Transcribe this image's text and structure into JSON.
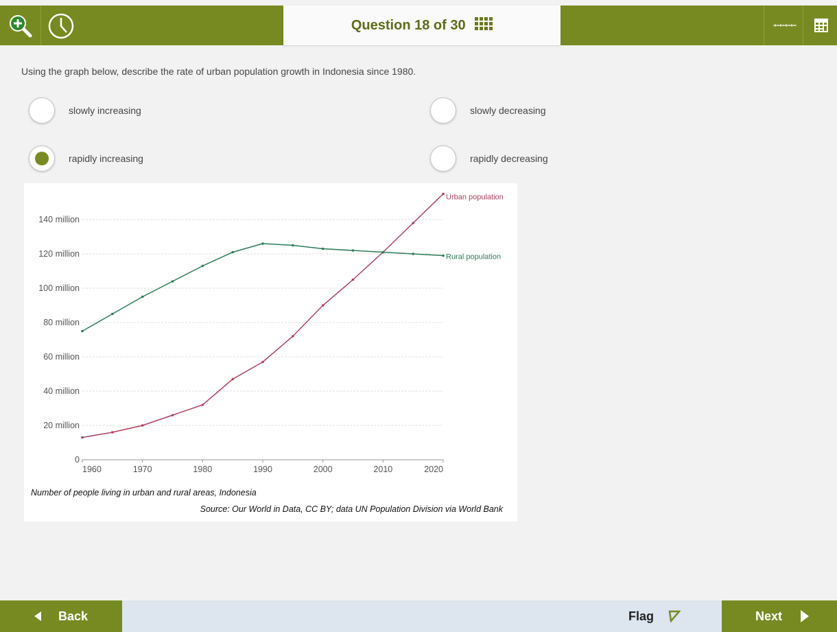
{
  "header": {
    "question_counter": "Question 18 of 30"
  },
  "question": {
    "prompt": "Using the graph below, describe the rate of urban population growth in Indonesia since 1980.",
    "options": [
      "slowly increasing",
      "slowly decreasing",
      "rapidly increasing",
      "rapidly decreasing"
    ],
    "selected": 2
  },
  "chart_data": {
    "type": "line",
    "title": "Number of people living in urban and rural areas, Indonesia",
    "source": "Source: Our World in Data, CC BY; data UN Population Division via World Bank",
    "x": [
      1960,
      1965,
      1970,
      1975,
      1980,
      1985,
      1990,
      1995,
      2000,
      2005,
      2010,
      2015,
      2020
    ],
    "xlim": [
      1960,
      2020
    ],
    "xticks": [
      1960,
      1970,
      1980,
      1990,
      2000,
      2010,
      2020
    ],
    "ylim": [
      0,
      160
    ],
    "yticks": [
      0,
      {
        "value": 20,
        "label": "20 million"
      },
      {
        "value": 40,
        "label": "40 million"
      },
      {
        "value": 60,
        "label": "60 million"
      },
      {
        "value": 80,
        "label": "80 million"
      },
      {
        "value": 100,
        "label": "100 million"
      },
      {
        "value": 120,
        "label": "120 million"
      },
      {
        "value": 140,
        "label": "140 million"
      }
    ],
    "grid": true,
    "series": [
      {
        "name": "Urban population",
        "color": "#b13f5e",
        "values": [
          13,
          16,
          20,
          26,
          32,
          47,
          57,
          72,
          90,
          105,
          121,
          138,
          155
        ]
      },
      {
        "name": "Rural population",
        "color": "#2d7c5a",
        "values": [
          75,
          85,
          95,
          104,
          113,
          121,
          126,
          125,
          123,
          122,
          121,
          120,
          119
        ]
      }
    ]
  },
  "footer": {
    "back": "Back",
    "flag": "Flag",
    "next": "Next"
  }
}
